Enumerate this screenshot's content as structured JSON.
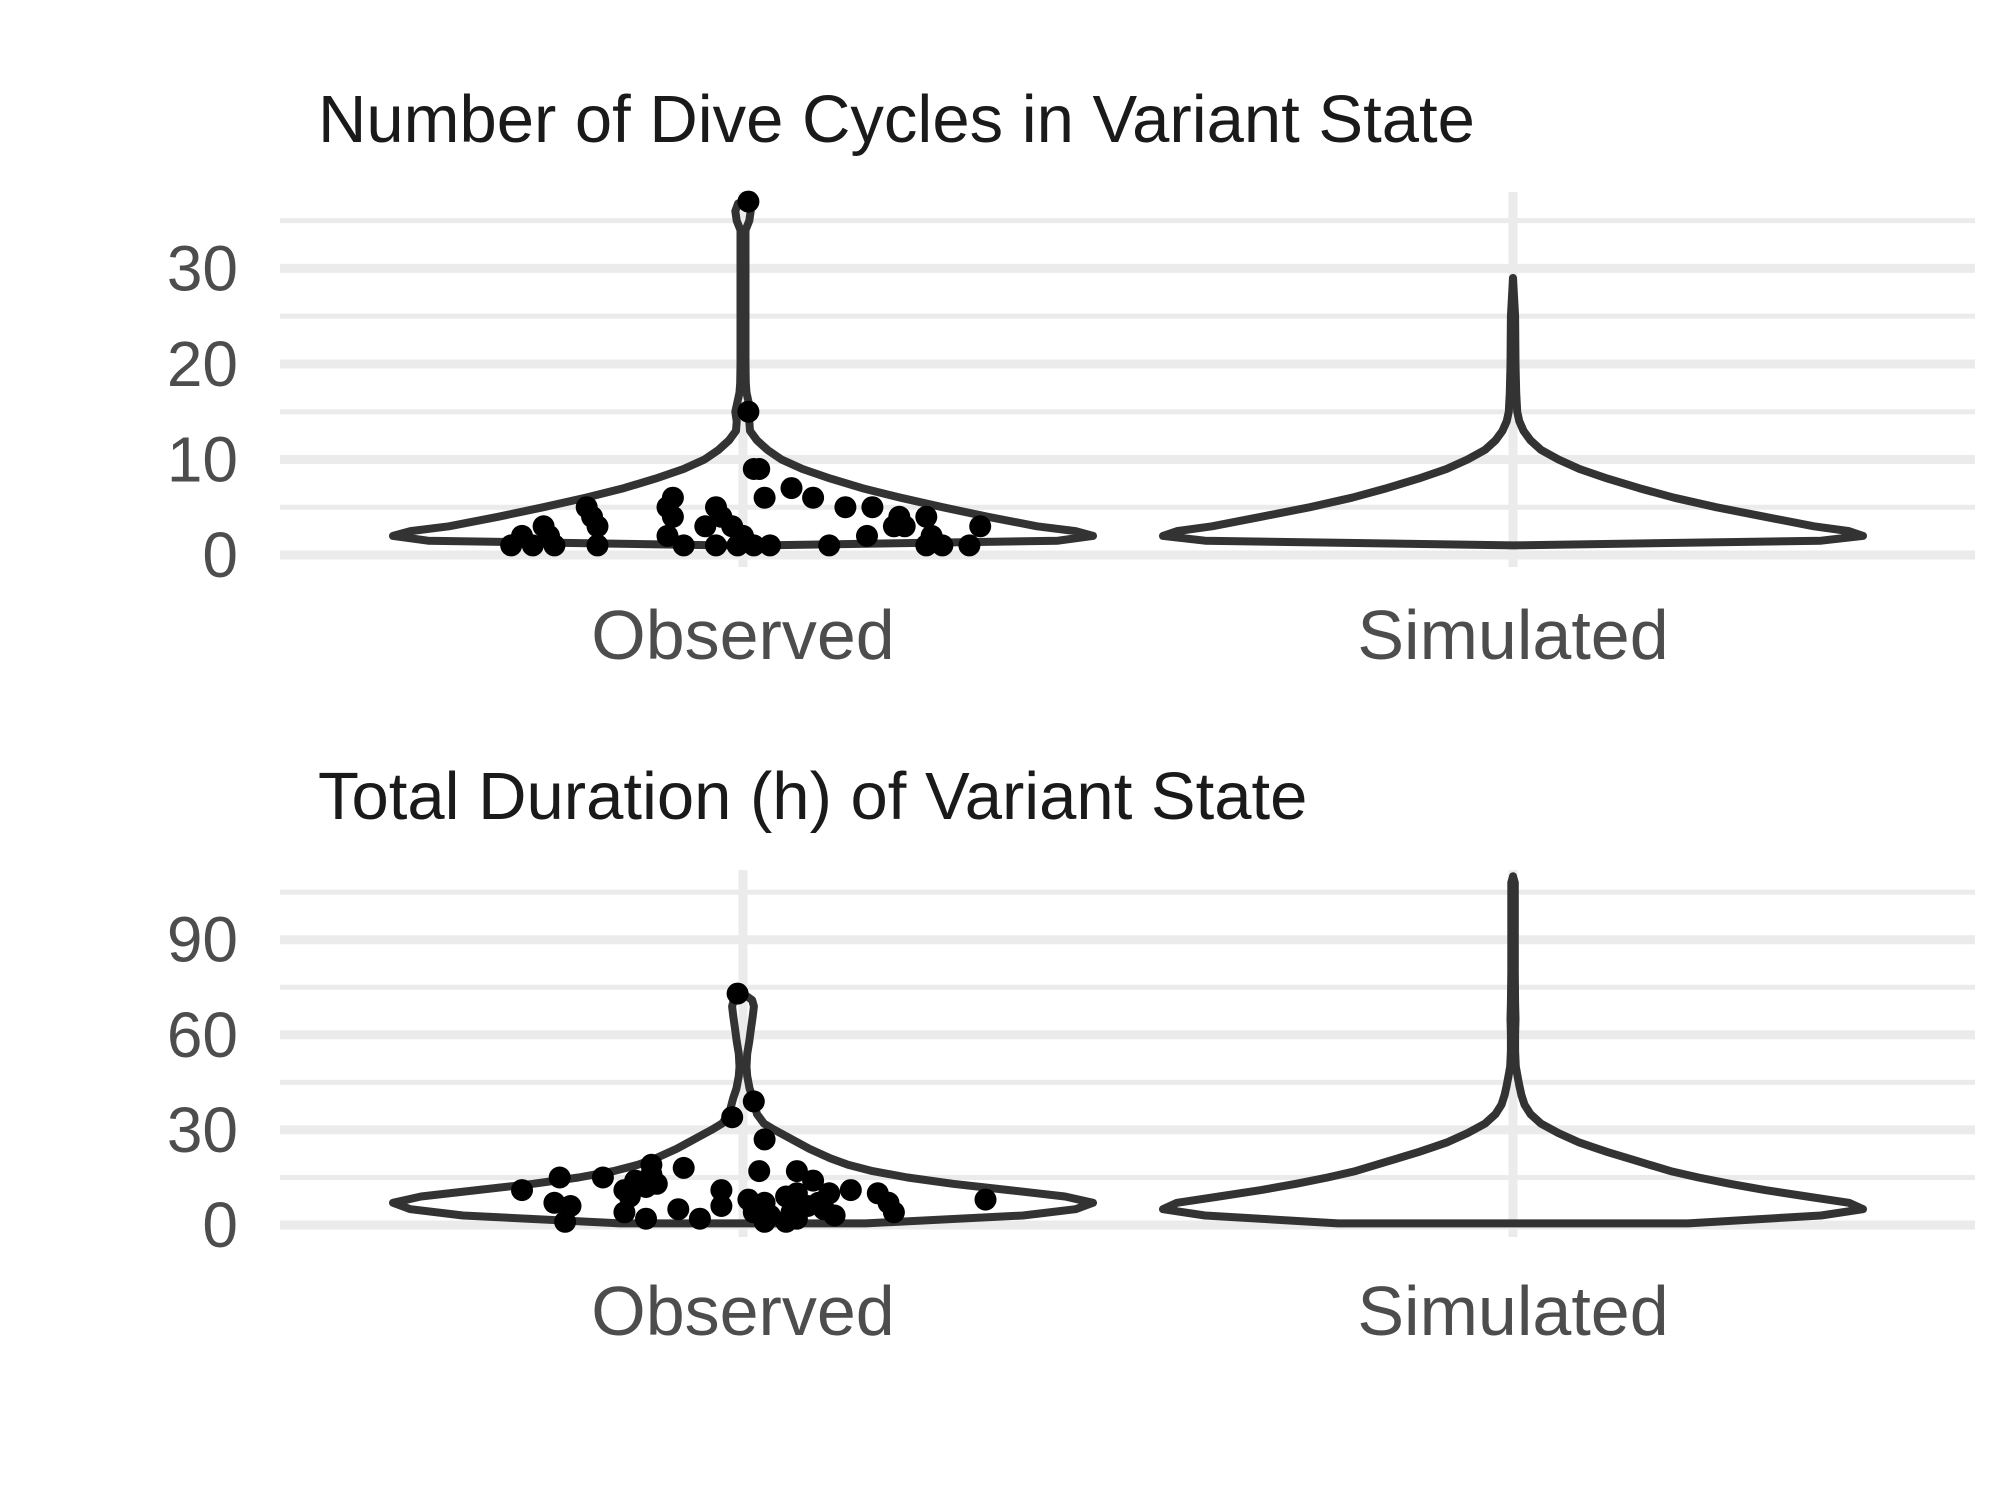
{
  "chart_data": [
    {
      "type": "violin",
      "title": "Number of Dive Cycles in Variant State",
      "xlabel": "",
      "ylabel": "",
      "categories": [
        "Observed",
        "Simulated"
      ],
      "ylim": [
        -1,
        38
      ],
      "yticks": [
        0,
        10,
        20,
        30
      ],
      "grid": true,
      "series": [
        {
          "category": "Observed",
          "min": 1,
          "max": 37,
          "density": [
            [
              1,
              0.06
            ],
            [
              1.5,
              0.9
            ],
            [
              2,
              1.0
            ],
            [
              2.5,
              0.95
            ],
            [
              3,
              0.84
            ],
            [
              4,
              0.7
            ],
            [
              5,
              0.57
            ],
            [
              6,
              0.45
            ],
            [
              7,
              0.34
            ],
            [
              8,
              0.25
            ],
            [
              9,
              0.17
            ],
            [
              10,
              0.11
            ],
            [
              11,
              0.07
            ],
            [
              12,
              0.04
            ],
            [
              13,
              0.02
            ],
            [
              14,
              0.018
            ],
            [
              15,
              0.022
            ],
            [
              16,
              0.016
            ],
            [
              17,
              0.01
            ],
            [
              18,
              0.008
            ],
            [
              20,
              0.007
            ],
            [
              25,
              0.007
            ],
            [
              30,
              0.007
            ],
            [
              34,
              0.007
            ],
            [
              35,
              0.018
            ],
            [
              36,
              0.022
            ],
            [
              36.8,
              0.014
            ],
            [
              37,
              0.0
            ]
          ],
          "points": [
            [
              1,
              -0.43
            ],
            [
              2,
              -0.41
            ],
            [
              3,
              -0.37
            ],
            [
              1,
              -0.39
            ],
            [
              2,
              -0.36
            ],
            [
              1,
              -0.35
            ],
            [
              5,
              -0.29
            ],
            [
              4,
              -0.28
            ],
            [
              3,
              -0.27
            ],
            [
              1,
              -0.27
            ],
            [
              6,
              -0.13
            ],
            [
              5,
              -0.14
            ],
            [
              4,
              -0.13
            ],
            [
              2,
              -0.14
            ],
            [
              1,
              -0.11
            ],
            [
              3,
              -0.07
            ],
            [
              5,
              -0.05
            ],
            [
              4,
              -0.04
            ],
            [
              1,
              -0.05
            ],
            [
              3,
              -0.02
            ],
            [
              1,
              -0.01
            ],
            [
              2,
              0.0
            ],
            [
              15,
              0.01
            ],
            [
              37,
              0.01
            ],
            [
              9,
              0.02
            ],
            [
              1,
              0.02
            ],
            [
              9,
              0.03
            ],
            [
              1,
              0.05
            ],
            [
              6,
              0.04
            ],
            [
              7,
              0.09
            ],
            [
              6,
              0.13
            ],
            [
              1,
              0.16
            ],
            [
              5,
              0.19
            ],
            [
              2,
              0.23
            ],
            [
              5,
              0.24
            ],
            [
              3,
              0.28
            ],
            [
              4,
              0.29
            ],
            [
              3,
              0.3
            ],
            [
              4,
              0.34
            ],
            [
              1,
              0.34
            ],
            [
              2,
              0.35
            ],
            [
              1,
              0.37
            ],
            [
              1,
              0.42
            ],
            [
              3,
              0.44
            ]
          ]
        },
        {
          "category": "Simulated",
          "min": 1,
          "max": 29,
          "density": [
            [
              1,
              0.0
            ],
            [
              1.5,
              0.88
            ],
            [
              2,
              1.0
            ],
            [
              2.5,
              0.96
            ],
            [
              3,
              0.86
            ],
            [
              4,
              0.72
            ],
            [
              5,
              0.58
            ],
            [
              6,
              0.46
            ],
            [
              7,
              0.36
            ],
            [
              8,
              0.27
            ],
            [
              9,
              0.19
            ],
            [
              10,
              0.13
            ],
            [
              11,
              0.08
            ],
            [
              12,
              0.05
            ],
            [
              13,
              0.03
            ],
            [
              14,
              0.018
            ],
            [
              15,
              0.012
            ],
            [
              17,
              0.009
            ],
            [
              20,
              0.007
            ],
            [
              25,
              0.006
            ],
            [
              29,
              0.0
            ]
          ],
          "points": []
        }
      ]
    },
    {
      "type": "violin",
      "title": "Total Duration (h) of Variant State",
      "xlabel": "",
      "ylabel": "",
      "categories": [
        "Observed",
        "Simulated"
      ],
      "ylim": [
        -3,
        112
      ],
      "yticks": [
        0,
        30,
        60,
        90
      ],
      "grid": true,
      "series": [
        {
          "category": "Observed",
          "min": 0.5,
          "max": 73,
          "density": [
            [
              0.5,
              0.35
            ],
            [
              3,
              0.8
            ],
            [
              5,
              0.95
            ],
            [
              7,
              1.0
            ],
            [
              9,
              0.92
            ],
            [
              11,
              0.76
            ],
            [
              13,
              0.6
            ],
            [
              15,
              0.47
            ],
            [
              17,
              0.37
            ],
            [
              19,
              0.3
            ],
            [
              21,
              0.25
            ],
            [
              24,
              0.19
            ],
            [
              27,
              0.14
            ],
            [
              30,
              0.09
            ],
            [
              32,
              0.06
            ],
            [
              35,
              0.04
            ],
            [
              38,
              0.033
            ],
            [
              40,
              0.028
            ],
            [
              43,
              0.019
            ],
            [
              47,
              0.012
            ],
            [
              50,
              0.01
            ],
            [
              54,
              0.012
            ],
            [
              58,
              0.018
            ],
            [
              62,
              0.023
            ],
            [
              66,
              0.028
            ],
            [
              69,
              0.031
            ],
            [
              71,
              0.026
            ],
            [
              73,
              0.0
            ]
          ],
          "points": [
            [
              11,
              -0.41
            ],
            [
              15,
              -0.34
            ],
            [
              7,
              -0.35
            ],
            [
              1,
              -0.33
            ],
            [
              6,
              -0.32
            ],
            [
              15,
              -0.26
            ],
            [
              11,
              -0.22
            ],
            [
              4,
              -0.22
            ],
            [
              9,
              -0.21
            ],
            [
              14,
              -0.2
            ],
            [
              12,
              -0.18
            ],
            [
              16,
              -0.17
            ],
            [
              2,
              -0.18
            ],
            [
              19,
              -0.17
            ],
            [
              13,
              -0.16
            ],
            [
              5,
              -0.12
            ],
            [
              18,
              -0.11
            ],
            [
              2,
              -0.08
            ],
            [
              6,
              -0.04
            ],
            [
              11,
              -0.04
            ],
            [
              34,
              -0.02
            ],
            [
              73,
              -0.01
            ],
            [
              8,
              0.01
            ],
            [
              4,
              0.02
            ],
            [
              5,
              0.02
            ],
            [
              1,
              0.04
            ],
            [
              7,
              0.04
            ],
            [
              39,
              0.02
            ],
            [
              17,
              0.03
            ],
            [
              3,
              0.05
            ],
            [
              27,
              0.04
            ],
            [
              1,
              0.08
            ],
            [
              9,
              0.08
            ],
            [
              4,
              0.09
            ],
            [
              10,
              0.1
            ],
            [
              2,
              0.1
            ],
            [
              17,
              0.1
            ],
            [
              6,
              0.12
            ],
            [
              14,
              0.13
            ],
            [
              7,
              0.14
            ],
            [
              5,
              0.15
            ],
            [
              10,
              0.16
            ],
            [
              3,
              0.17
            ],
            [
              11,
              0.2
            ],
            [
              10,
              0.25
            ],
            [
              7,
              0.27
            ],
            [
              4,
              0.28
            ],
            [
              8,
              0.45
            ]
          ]
        },
        {
          "category": "Simulated",
          "min": 0.5,
          "max": 110,
          "density": [
            [
              0.5,
              0.5
            ],
            [
              3,
              0.88
            ],
            [
              5,
              1.0
            ],
            [
              7,
              0.96
            ],
            [
              9,
              0.84
            ],
            [
              11,
              0.72
            ],
            [
              13,
              0.62
            ],
            [
              15,
              0.53
            ],
            [
              17,
              0.45
            ],
            [
              20,
              0.36
            ],
            [
              23,
              0.27
            ],
            [
              26,
              0.19
            ],
            [
              29,
              0.13
            ],
            [
              32,
              0.08
            ],
            [
              35,
              0.05
            ],
            [
              38,
              0.033
            ],
            [
              41,
              0.024
            ],
            [
              44,
              0.018
            ],
            [
              47,
              0.013
            ],
            [
              50,
              0.008
            ],
            [
              55,
              0.006
            ],
            [
              60,
              0.006
            ],
            [
              65,
              0.007
            ],
            [
              70,
              0.006
            ],
            [
              80,
              0.005
            ],
            [
              90,
              0.005
            ],
            [
              100,
              0.005
            ],
            [
              108,
              0.005
            ],
            [
              110,
              0.0
            ]
          ],
          "points": []
        }
      ]
    }
  ]
}
